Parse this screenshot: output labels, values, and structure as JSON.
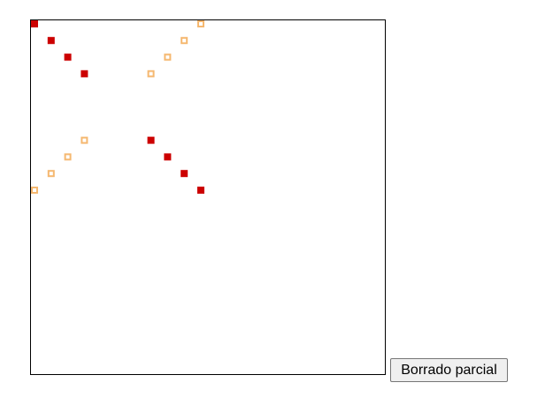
{
  "button": {
    "label": "Borrado parcial"
  },
  "colors": {
    "filled_marker": "#cc0000",
    "hollow_marker": "#f5b870",
    "canvas_border": "#000000",
    "background": "#ffffff"
  },
  "markers": {
    "filled": [
      {
        "col": 0,
        "row": 0
      },
      {
        "col": 1,
        "row": 1
      },
      {
        "col": 2,
        "row": 2
      },
      {
        "col": 3,
        "row": 3
      },
      {
        "col": 7,
        "row": 7
      },
      {
        "col": 8,
        "row": 8
      },
      {
        "col": 9,
        "row": 9
      },
      {
        "col": 10,
        "row": 10
      }
    ],
    "hollow": [
      {
        "col": 7,
        "row": 3
      },
      {
        "col": 8,
        "row": 2
      },
      {
        "col": 9,
        "row": 1
      },
      {
        "col": 10,
        "row": 0
      },
      {
        "col": 0,
        "row": 10
      },
      {
        "col": 1,
        "row": 9
      },
      {
        "col": 2,
        "row": 8
      },
      {
        "col": 3,
        "row": 7
      }
    ]
  }
}
